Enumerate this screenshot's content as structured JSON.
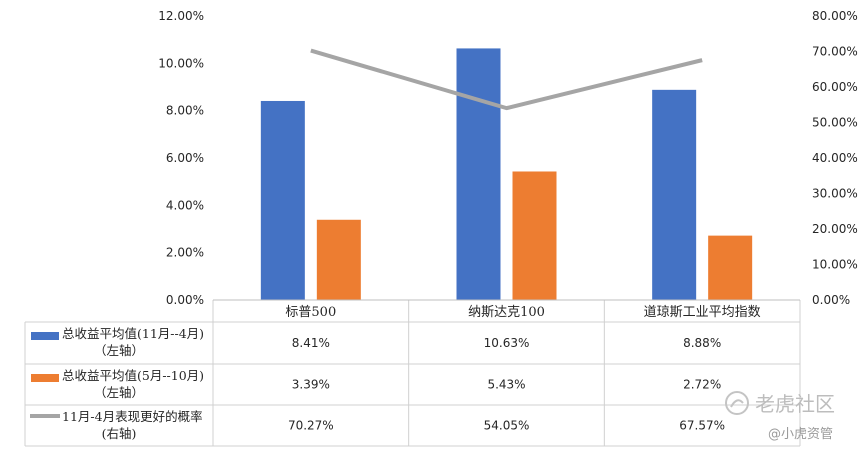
{
  "chart_data": {
    "type": "bar",
    "categories": [
      "标普500",
      "纳斯达克100",
      "道琼斯工业平均指数"
    ],
    "series": [
      {
        "name": "总收益平均值(11月--4月)（左轴）",
        "type": "bar",
        "axis": "left",
        "color": "#4472C4",
        "values": [
          8.41,
          10.63,
          8.88
        ],
        "labels": [
          "8.41%",
          "10.63%",
          "8.88%"
        ]
      },
      {
        "name": "总收益平均值(5月--10月)（左轴）",
        "type": "bar",
        "axis": "left",
        "color": "#ED7D31",
        "values": [
          3.39,
          5.43,
          2.72
        ],
        "labels": [
          "3.39%",
          "5.43%",
          "2.72%"
        ]
      },
      {
        "name": "11月-4月表现更好的概率（右轴）",
        "type": "line",
        "axis": "right",
        "color": "#A5A5A5",
        "values": [
          70.27,
          54.05,
          67.57
        ],
        "labels": [
          "70.27%",
          "54.05%",
          "67.57%"
        ]
      }
    ],
    "left_axis": {
      "min": 0,
      "max": 12,
      "step": 2,
      "tick_labels": [
        "0.00%",
        "2.00%",
        "4.00%",
        "6.00%",
        "8.00%",
        "10.00%",
        "12.00%"
      ]
    },
    "right_axis": {
      "min": 0,
      "max": 80,
      "step": 10,
      "tick_labels": [
        "0.00%",
        "10.00%",
        "20.00%",
        "30.00%",
        "40.00%",
        "50.00%",
        "60.00%",
        "70.00%",
        "80.00%"
      ]
    },
    "grid": false,
    "legend": "data-table"
  },
  "row_labels": [
    [
      "总收益平均值(11月--4月)",
      "（左轴）"
    ],
    [
      "总收益平均值(5月--10月)",
      "（左轴）"
    ],
    [
      "11月-4月表现更好的概率",
      "(右轴)"
    ]
  ],
  "watermark": {
    "main": "老虎社区",
    "sub": "@小虎资管"
  }
}
